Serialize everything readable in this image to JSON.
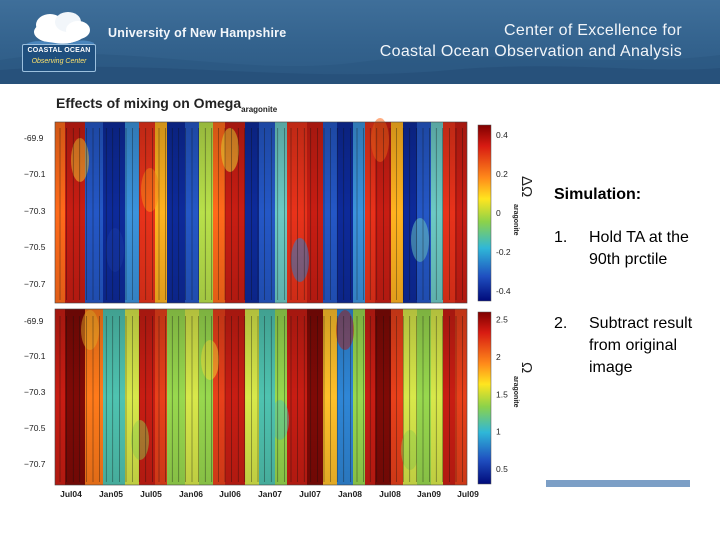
{
  "header": {
    "logo_line1": "COASTAL OCEAN",
    "logo_line2": "Observing Center",
    "university": "University of New Hampshire",
    "center_line1": "Center of Excellence for",
    "center_line2": "Coastal Ocean Observation and Analysis"
  },
  "figure": {
    "title_main": "Effects of mixing on Omega",
    "title_sub": "aragonite",
    "y_ticks_top": [
      "-69.9",
      "−70.1",
      "−70.3",
      "−70.5",
      "−70.7"
    ],
    "y_ticks_bottom": [
      "-69.9",
      "−70.1",
      "−70.3",
      "−70.5",
      "−70.7"
    ],
    "x_ticks": [
      "Jul04",
      "Jan05",
      "Jul05",
      "Jan06",
      "Jul06",
      "Jan07",
      "Jul07",
      "Jan08",
      "Jul08",
      "Jan09",
      "Jul09"
    ],
    "colorbar_top_ticks": [
      "0.4",
      "0.2",
      "0",
      "-0.2",
      "-0.4"
    ],
    "colorbar_top_values": [
      0.4,
      0.2,
      0,
      -0.2,
      -0.4
    ],
    "colorbar_top_range": [
      -0.45,
      0.45
    ],
    "colorbar_top_label": "ΔΩ",
    "colorbar_top_sub": "aragonite",
    "colorbar_bottom_ticks": [
      "2.5",
      "2",
      "1.5",
      "1",
      "0.5"
    ],
    "colorbar_bottom_values": [
      2.5,
      2,
      1.5,
      1,
      0.5
    ],
    "colorbar_bottom_range": [
      0.3,
      2.6
    ],
    "colorbar_bottom_label": "Ω",
    "colorbar_bottom_sub": "aragonite"
  },
  "panel": {
    "title": "Simulation:",
    "steps": [
      {
        "num": "1.",
        "text": "Hold TA at the 90th prctile"
      },
      {
        "num": "2.",
        "text": "Subtract result from original image"
      }
    ]
  }
}
